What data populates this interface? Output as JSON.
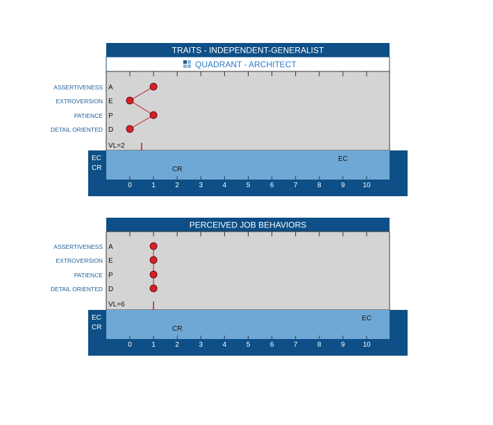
{
  "colors": {
    "header": "#0d4f86",
    "panel": "#d4d4d4",
    "band": "#6fa8d4",
    "frame": "#0d4f86",
    "dot": "#d8202a",
    "line": "#c8161e",
    "label": "#1d5e99",
    "quadrant_text": "#2b7bc4"
  },
  "chart_data": [
    {
      "type": "line",
      "title": "TRAITS - INDEPENDENT-GENERALIST",
      "subtitle": "QUADRANT - ARCHITECT",
      "subtitle_icon": "quadrant-grid-icon",
      "categories": [
        "ASSERTIVENESS",
        "EXTROVERSION",
        "PATIENCE",
        "DETAIL ORIENTED"
      ],
      "letters": [
        "A",
        "E",
        "P",
        "D"
      ],
      "values": [
        1,
        0,
        1,
        0
      ],
      "x_ticks": [
        "0",
        "1",
        "2",
        "3",
        "4",
        "5",
        "6",
        "7",
        "8",
        "9",
        "10"
      ],
      "xlim": [
        0,
        10
      ],
      "vl_label": "VL=2",
      "vl_value": 0.5,
      "band_rows": [
        "EC",
        "CR"
      ],
      "ec_value": 9,
      "cr_value": 2,
      "ec_label": "EC",
      "cr_label": "CR"
    },
    {
      "type": "line",
      "title": "PERCEIVED JOB BEHAVIORS",
      "categories": [
        "ASSERTIVENESS",
        "EXTROVERSION",
        "PATIENCE",
        "DETAIL ORIENTED"
      ],
      "letters": [
        "A",
        "E",
        "P",
        "D"
      ],
      "values": [
        1,
        1,
        1,
        1
      ],
      "x_ticks": [
        "0",
        "1",
        "2",
        "3",
        "4",
        "5",
        "6",
        "7",
        "8",
        "9",
        "10"
      ],
      "xlim": [
        0,
        10
      ],
      "vl_label": "VL=6",
      "vl_value": 1,
      "band_rows": [
        "EC",
        "CR"
      ],
      "ec_value": 10,
      "cr_value": 2,
      "ec_label": "EC",
      "cr_label": "CR"
    }
  ]
}
